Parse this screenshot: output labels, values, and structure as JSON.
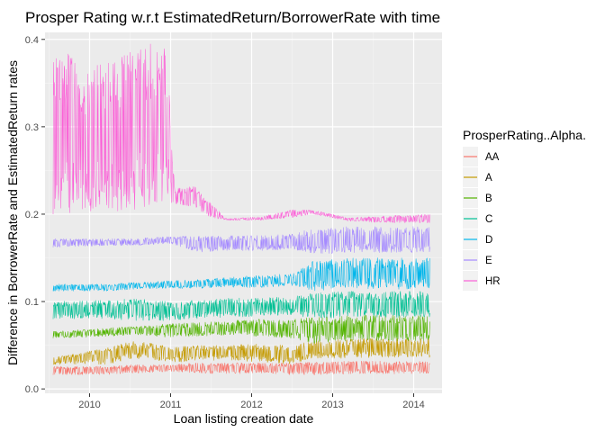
{
  "chart_data": {
    "type": "line",
    "title": "Prosper Rating w.r.t EstimatedReturn/BorrowerRate with time",
    "xlabel": "Loan listing creation date",
    "ylabel": "Difference in BorrowerRate and EstimatedReturn rates",
    "x_ticks": [
      "2010",
      "2011",
      "2012",
      "2013",
      "2014"
    ],
    "y_ticks": [
      "0.0",
      "0.1",
      "0.2",
      "0.3",
      "0.4"
    ],
    "xlim": [
      2009.45,
      2014.35
    ],
    "ylim": [
      -0.005,
      0.408
    ],
    "grid": true,
    "legend": {
      "title": "ProsperRating..Alpha.",
      "position": "right"
    },
    "series": [
      {
        "name": "AA",
        "color": "#F8766D",
        "x": [
          2009.55,
          2010.25,
          2010.55,
          2011.0,
          2011.35,
          2011.7,
          2012.1,
          2012.5,
          2012.75,
          2013.2,
          2013.6,
          2014.2
        ],
        "low": [
          0.016,
          0.016,
          0.018,
          0.02,
          0.018,
          0.017,
          0.018,
          0.016,
          0.016,
          0.017,
          0.017,
          0.017
        ],
        "high": [
          0.026,
          0.026,
          0.028,
          0.028,
          0.03,
          0.03,
          0.03,
          0.03,
          0.031,
          0.032,
          0.032,
          0.032
        ]
      },
      {
        "name": "A",
        "color": "#C49A00",
        "x": [
          2009.55,
          2010.25,
          2010.55,
          2011.0,
          2011.35,
          2011.7,
          2012.1,
          2012.5,
          2012.75,
          2013.2,
          2013.6,
          2014.2
        ],
        "low": [
          0.028,
          0.028,
          0.035,
          0.03,
          0.032,
          0.033,
          0.03,
          0.028,
          0.035,
          0.035,
          0.036,
          0.036
        ],
        "high": [
          0.036,
          0.048,
          0.056,
          0.048,
          0.05,
          0.05,
          0.052,
          0.05,
          0.056,
          0.058,
          0.058,
          0.058
        ]
      },
      {
        "name": "B",
        "color": "#53B400",
        "x": [
          2009.55,
          2010.25,
          2010.55,
          2011.0,
          2011.35,
          2011.7,
          2012.1,
          2012.5,
          2012.75,
          2013.2,
          2013.6,
          2014.2
        ],
        "low": [
          0.058,
          0.06,
          0.062,
          0.058,
          0.06,
          0.062,
          0.06,
          0.058,
          0.052,
          0.055,
          0.055,
          0.055
        ],
        "high": [
          0.066,
          0.07,
          0.072,
          0.075,
          0.076,
          0.078,
          0.08,
          0.08,
          0.082,
          0.084,
          0.085,
          0.085
        ]
      },
      {
        "name": "C",
        "color": "#00C094",
        "x": [
          2009.55,
          2010.25,
          2010.55,
          2011.0,
          2011.35,
          2011.7,
          2012.1,
          2012.5,
          2012.75,
          2013.2,
          2013.6,
          2014.2
        ],
        "low": [
          0.08,
          0.08,
          0.078,
          0.078,
          0.08,
          0.082,
          0.083,
          0.085,
          0.08,
          0.082,
          0.082,
          0.082
        ],
        "high": [
          0.1,
          0.102,
          0.104,
          0.1,
          0.102,
          0.104,
          0.104,
          0.106,
          0.11,
          0.112,
          0.112,
          0.112
        ]
      },
      {
        "name": "D",
        "color": "#00B6EB",
        "x": [
          2009.55,
          2010.25,
          2010.55,
          2011.0,
          2011.35,
          2011.7,
          2012.1,
          2012.5,
          2012.75,
          2013.2,
          2013.6,
          2014.2
        ],
        "low": [
          0.112,
          0.112,
          0.114,
          0.115,
          0.115,
          0.116,
          0.116,
          0.118,
          0.112,
          0.114,
          0.114,
          0.114
        ],
        "high": [
          0.12,
          0.12,
          0.122,
          0.124,
          0.126,
          0.128,
          0.13,
          0.132,
          0.146,
          0.15,
          0.15,
          0.15
        ]
      },
      {
        "name": "E",
        "color": "#A58AFF",
        "x": [
          2009.55,
          2010.25,
          2010.55,
          2011.0,
          2011.35,
          2011.7,
          2012.1,
          2012.5,
          2012.75,
          2013.2,
          2013.6,
          2014.2
        ],
        "low": [
          0.162,
          0.164,
          0.164,
          0.166,
          0.156,
          0.158,
          0.158,
          0.16,
          0.154,
          0.156,
          0.156,
          0.156
        ],
        "high": [
          0.172,
          0.172,
          0.172,
          0.175,
          0.175,
          0.176,
          0.176,
          0.178,
          0.184,
          0.186,
          0.186,
          0.186
        ]
      },
      {
        "name": "HR",
        "color": "#FB61D7",
        "x": [
          2009.55,
          2009.9,
          2010.25,
          2010.55,
          2010.95,
          2011.05,
          2011.3,
          2011.5,
          2011.7,
          2012.1,
          2012.5,
          2012.75,
          2013.2,
          2013.6,
          2014.2
        ],
        "low": [
          0.2,
          0.2,
          0.202,
          0.205,
          0.215,
          0.212,
          0.208,
          0.196,
          0.193,
          0.193,
          0.196,
          0.2,
          0.192,
          0.19,
          0.19
        ],
        "high": [
          0.395,
          0.375,
          0.375,
          0.395,
          0.395,
          0.23,
          0.232,
          0.212,
          0.195,
          0.197,
          0.205,
          0.205,
          0.196,
          0.198,
          0.2
        ]
      }
    ]
  }
}
